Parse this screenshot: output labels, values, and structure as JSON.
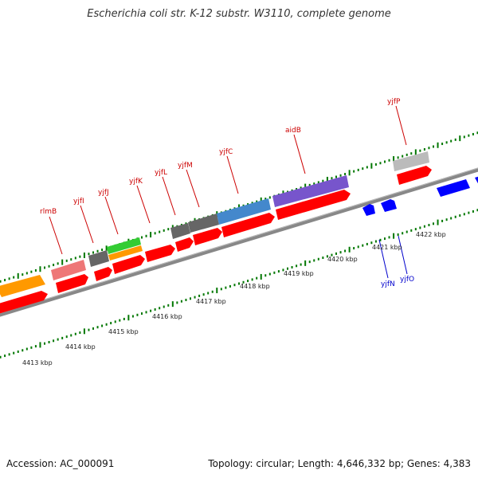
{
  "header": {
    "title": "Escherichia coli str. K-12 substr. W3110, complete genome"
  },
  "footer": {
    "accession": "Accession: AC_000091",
    "topology": "Topology: circular; Length: 4,646,332 bp; Genes: 4,383"
  },
  "colors": {
    "forward_gene": "#ff0000",
    "reverse_gene": "#0000ff",
    "forward_label": "#cc0000",
    "reverse_label": "#0000cc",
    "backbone": "#888888",
    "tick": "#007700"
  },
  "scale": {
    "labels": [
      "4413 kbp",
      "4414 kbp",
      "4415 kbp",
      "4416 kbp",
      "4417 kbp",
      "4418 kbp",
      "4419 kbp",
      "4420 kbp",
      "4421 kbp",
      "4422 kbp"
    ]
  },
  "genes": {
    "forward_labels": [
      "rlmB",
      "yjfI",
      "yjfJ",
      "yjfK",
      "yjfL",
      "yjfM",
      "yjfC",
      "aidB",
      "yjfP"
    ],
    "reverse_labels": [
      "yjfN",
      "yjfO"
    ]
  }
}
